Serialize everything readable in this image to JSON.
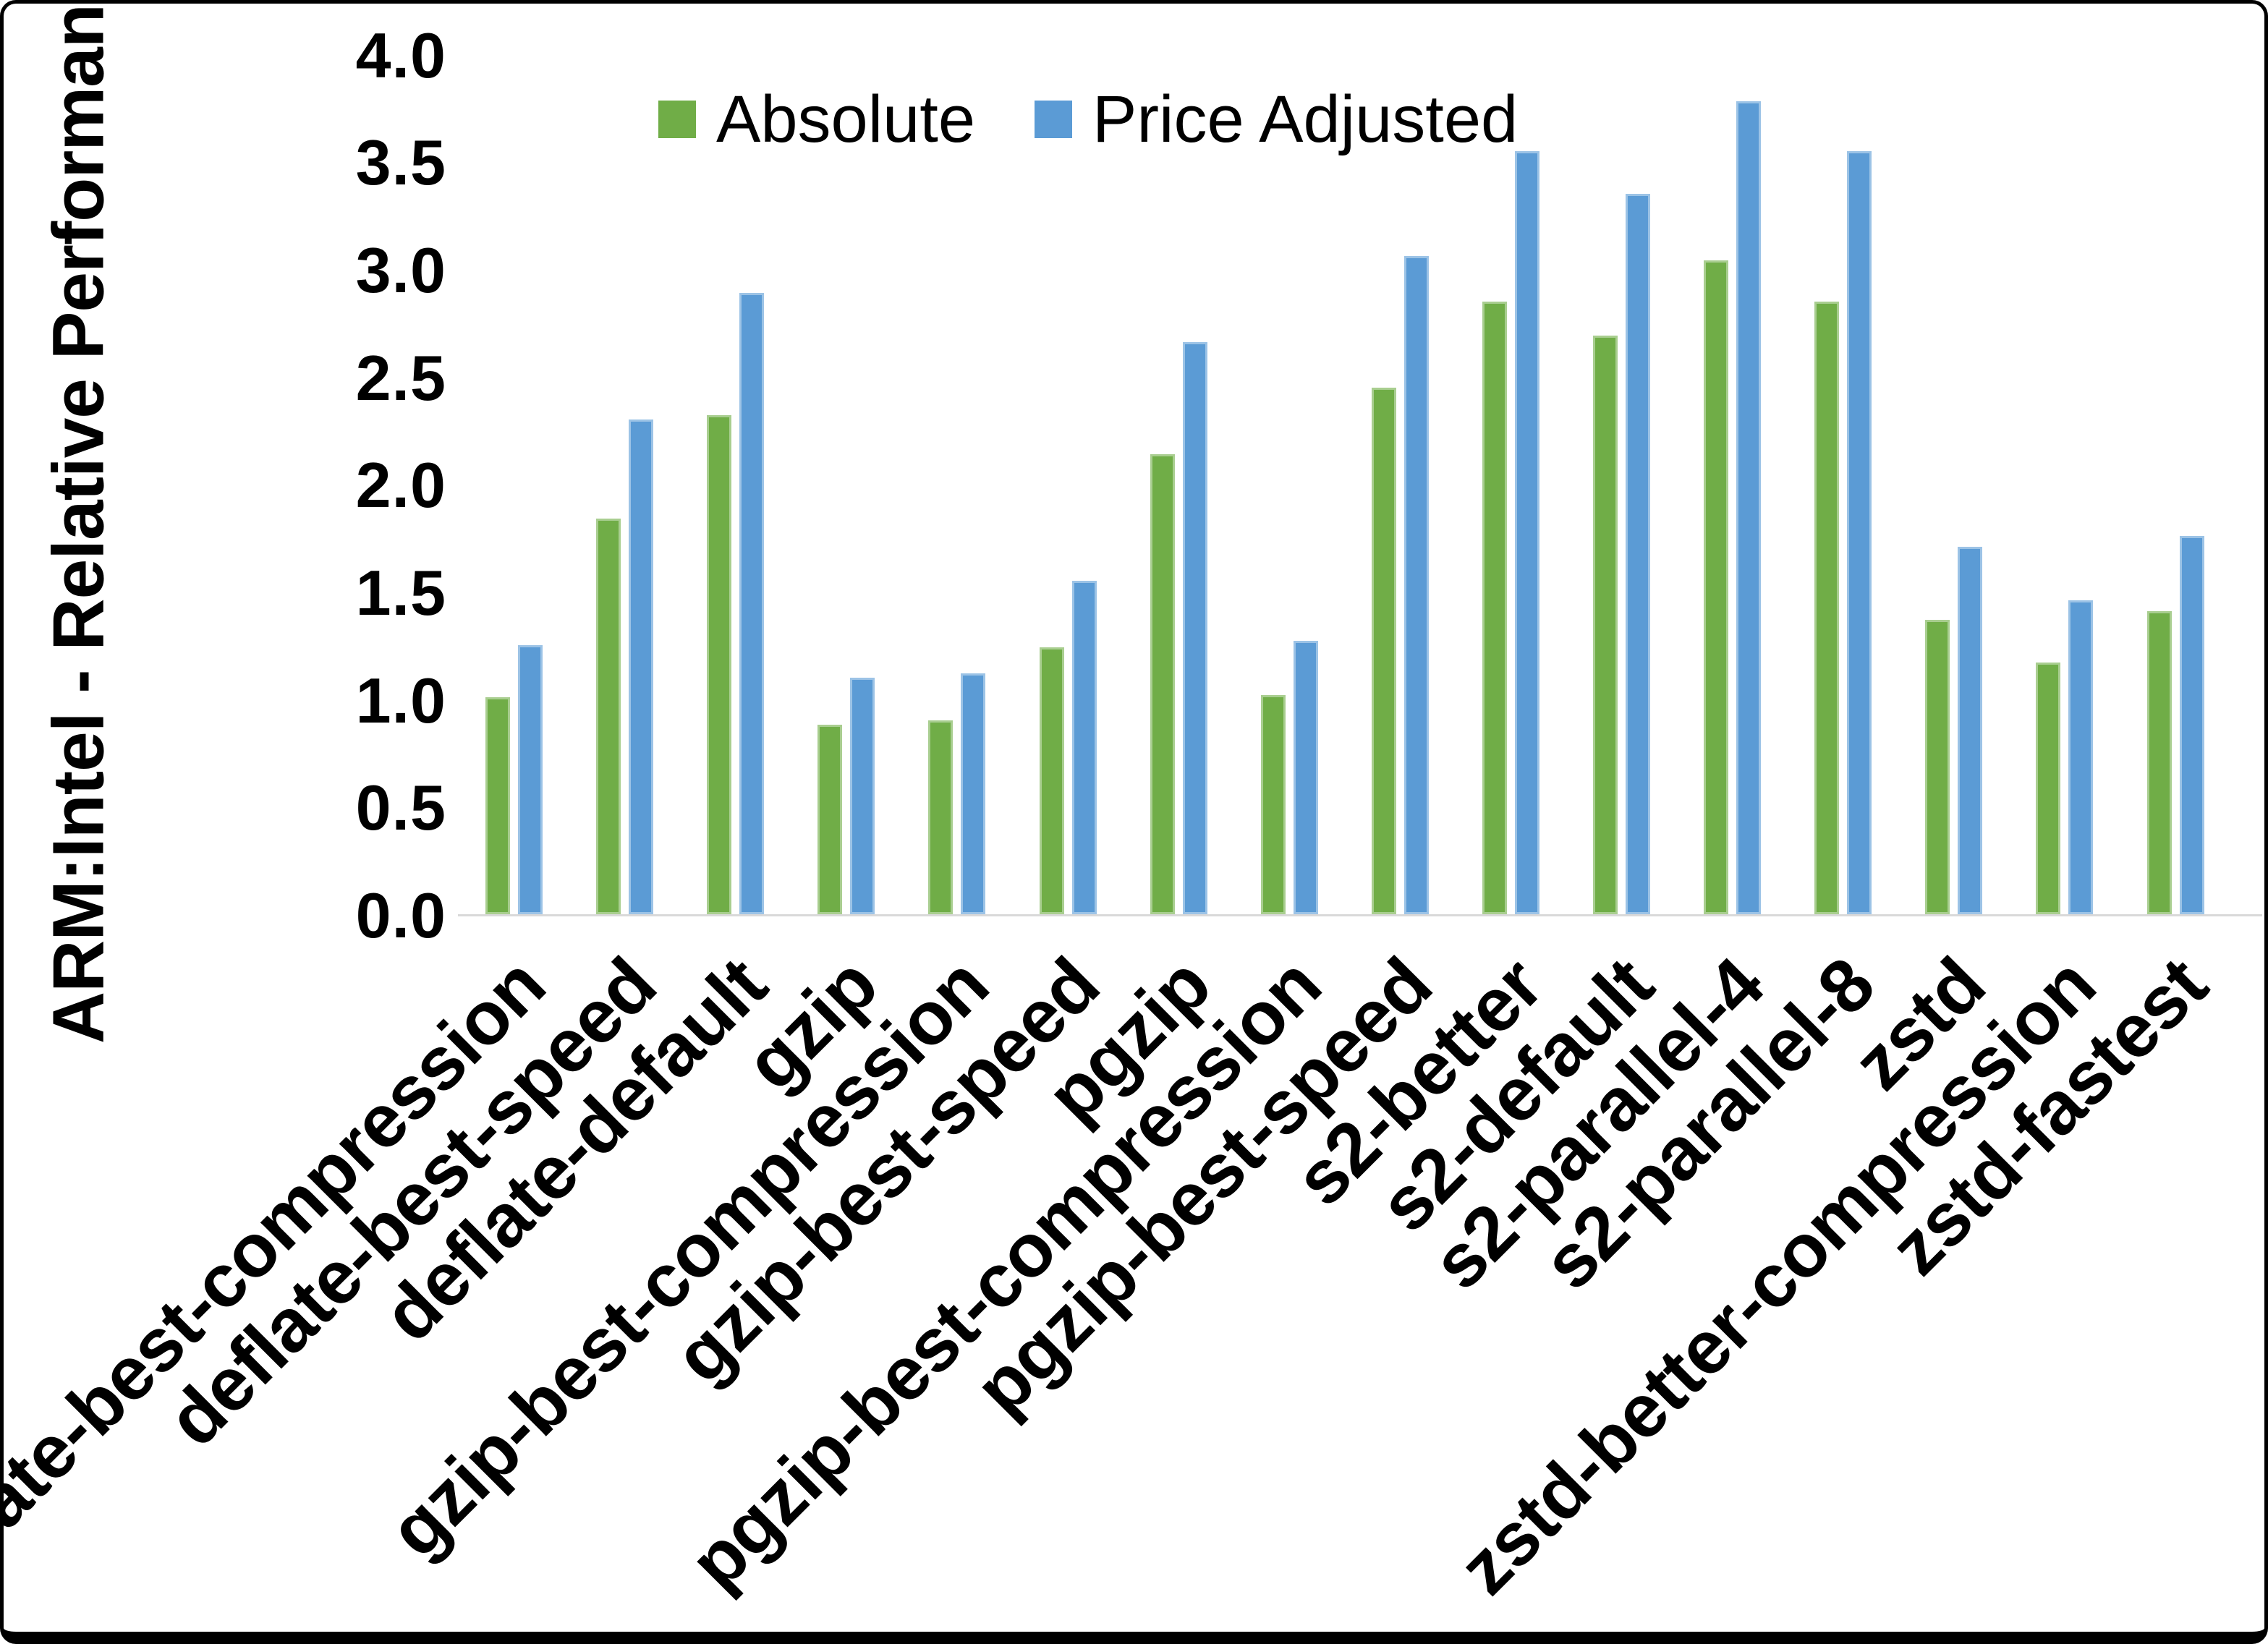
{
  "chart_data": {
    "type": "bar",
    "title": "",
    "xlabel": "",
    "ylabel": "ARM:Intel - Relative Performance",
    "ylim": [
      0.0,
      4.0
    ],
    "ytick_step": 0.5,
    "yticks": [
      "0.0",
      "0.5",
      "1.0",
      "1.5",
      "2.0",
      "2.5",
      "3.0",
      "3.5",
      "4.0"
    ],
    "grid": false,
    "legend_position": "top-center",
    "categories": [
      "deflate-best-compression",
      "deflate-best-speed",
      "deflate-default",
      "gzip",
      "gzip-best-compression",
      "gzip-best-speed",
      "pgzip",
      "pgzip-best-compression",
      "pgzip-best-speed",
      "s2-better",
      "s2-default",
      "s2-parallel-4",
      "s2-parallel-8",
      "zstd",
      "zstd-better-compression",
      "zstd-fastest"
    ],
    "series": [
      {
        "name": "Absolute",
        "color": "#70AD47",
        "values": [
          1.01,
          1.84,
          2.32,
          0.88,
          0.9,
          1.24,
          2.14,
          1.02,
          2.45,
          2.85,
          2.69,
          3.04,
          2.85,
          1.37,
          1.17,
          1.41
        ]
      },
      {
        "name": "Price Adjusted",
        "color": "#5B9BD5",
        "values": [
          1.25,
          2.3,
          2.89,
          1.1,
          1.12,
          1.55,
          2.66,
          1.27,
          3.06,
          3.55,
          3.35,
          3.78,
          3.55,
          1.71,
          1.46,
          1.76
        ]
      }
    ],
    "colors": {
      "axis_line": "#D9D9D9",
      "text": "#000000",
      "background": "#FFFFFF",
      "frame_border": "#000000"
    }
  }
}
